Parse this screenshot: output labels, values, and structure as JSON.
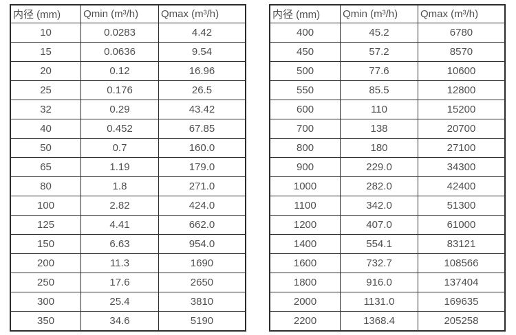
{
  "colors": {
    "background": "#ffffff",
    "table_border": "#2c2c2c",
    "table_text": "#4f4f4f"
  },
  "chart_data": [
    {
      "type": "table",
      "title": "",
      "columns": [
        "内径 (mm)",
        "Qmin (m³/h)",
        "Qmax (m³/h)"
      ],
      "rows": [
        [
          "10",
          "0.0283",
          "4.42"
        ],
        [
          "15",
          "0.0636",
          "9.54"
        ],
        [
          "20",
          "0.12",
          "16.96"
        ],
        [
          "25",
          "0.176",
          "26.5"
        ],
        [
          "32",
          "0.29",
          "43.42"
        ],
        [
          "40",
          "0.452",
          "67.85"
        ],
        [
          "50",
          "0.7",
          "160.0"
        ],
        [
          "65",
          "1.19",
          "179.0"
        ],
        [
          "80",
          "1.8",
          "271.0"
        ],
        [
          "100",
          "2.82",
          "424.0"
        ],
        [
          "125",
          "4.41",
          "662.0"
        ],
        [
          "150",
          "6.63",
          "954.0"
        ],
        [
          "200",
          "11.3",
          "1690"
        ],
        [
          "250",
          "17.6",
          "2650"
        ],
        [
          "300",
          "25.4",
          "3810"
        ],
        [
          "350",
          "34.6",
          "5190"
        ]
      ]
    },
    {
      "type": "table",
      "title": "",
      "columns": [
        "内径 (mm)",
        "Qmin (m³/h)",
        "Qmax (m³/h)"
      ],
      "rows": [
        [
          "400",
          "45.2",
          "6780"
        ],
        [
          "450",
          "57.2",
          "8570"
        ],
        [
          "500",
          "77.6",
          "10600"
        ],
        [
          "550",
          "85.5",
          "12800"
        ],
        [
          "600",
          "110",
          "15200"
        ],
        [
          "700",
          "138",
          "20700"
        ],
        [
          "800",
          "180",
          "27100"
        ],
        [
          "900",
          "229.0",
          "34300"
        ],
        [
          "1000",
          "282.0",
          "42400"
        ],
        [
          "1100",
          "342.0",
          "51300"
        ],
        [
          "1200",
          "407.0",
          "61000"
        ],
        [
          "1400",
          "554.1",
          "83121"
        ],
        [
          "1600",
          "732.7",
          "108566"
        ],
        [
          "1800",
          "916.0",
          "137404"
        ],
        [
          "2000",
          "1131.0",
          "169635"
        ],
        [
          "2200",
          "1368.4",
          "205258"
        ]
      ]
    }
  ]
}
